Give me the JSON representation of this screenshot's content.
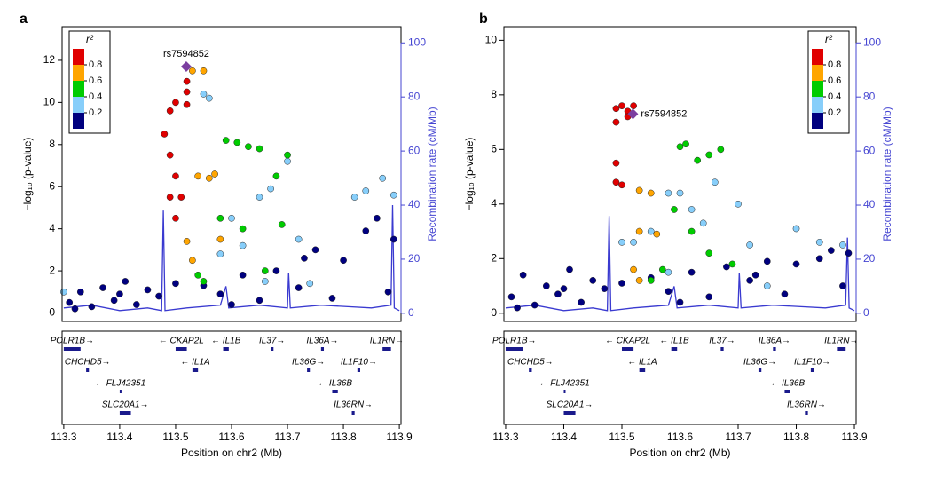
{
  "chart_data": [
    {
      "type": "scatter",
      "panel": "a",
      "xlabel": "Position on chr2 (Mb)",
      "ylabel": "−log₁₀ (p-value)",
      "y2label": "Recombination rate (cM/Mb)",
      "xlim": [
        113.297,
        113.903
      ],
      "xticks": [
        113.3,
        113.4,
        113.5,
        113.6,
        113.7,
        113.8,
        113.9
      ],
      "ylim": [
        -0.4,
        13.6
      ],
      "yticks": [
        0,
        2,
        4,
        6,
        8,
        10,
        12
      ],
      "y2lim": [
        -3,
        106
      ],
      "y2ticks": [
        0,
        20,
        40,
        60,
        80,
        100
      ],
      "y2color": "#4646d2",
      "legend": {
        "title": "r²",
        "position": "upper left",
        "colorlim": [
          0,
          1
        ],
        "colors": [
          "#00007f",
          "#87cefa",
          "#00cc00",
          "#ffa500",
          "#e00000"
        ],
        "ticks": [
          0.2,
          0.4,
          0.6,
          0.8
        ]
      },
      "series": [
        {
          "color": "#00007f",
          "x": [
            113.31,
            113.33,
            113.35,
            113.37,
            113.39,
            113.41,
            113.43,
            113.45,
            113.47,
            113.5,
            113.55,
            113.58,
            113.62,
            113.65,
            113.68,
            113.72,
            113.75,
            113.78,
            113.8,
            113.84,
            113.86,
            113.88,
            113.89,
            113.32,
            113.4,
            113.6,
            113.73
          ],
          "values": [
            0.5,
            1.0,
            0.3,
            1.2,
            0.6,
            1.5,
            0.4,
            1.1,
            0.8,
            1.4,
            1.3,
            0.9,
            1.8,
            0.6,
            2.0,
            1.2,
            3.0,
            0.7,
            2.5,
            3.9,
            4.5,
            1.0,
            3.5,
            0.2,
            0.9,
            0.4,
            2.6
          ]
        },
        {
          "color": "#87cefa",
          "x": [
            113.55,
            113.56,
            113.58,
            113.6,
            113.62,
            113.65,
            113.67,
            113.7,
            113.72,
            113.74,
            113.82,
            113.84,
            113.87,
            113.89,
            113.3,
            113.66
          ],
          "values": [
            10.4,
            10.2,
            2.8,
            4.5,
            3.2,
            5.5,
            5.9,
            7.2,
            3.5,
            1.4,
            5.5,
            5.8,
            6.4,
            5.6,
            1.0,
            1.5
          ]
        },
        {
          "color": "#00cc00",
          "x": [
            113.59,
            113.61,
            113.63,
            113.65,
            113.68,
            113.7,
            113.58,
            113.62,
            113.69,
            113.54,
            113.66,
            113.55
          ],
          "values": [
            8.2,
            8.1,
            7.9,
            7.8,
            6.5,
            7.5,
            4.5,
            4.0,
            4.2,
            1.8,
            2.0,
            1.5
          ]
        },
        {
          "color": "#ffa500",
          "x": [
            113.53,
            113.55,
            113.54,
            113.56,
            113.52,
            113.53,
            113.57,
            113.58
          ],
          "values": [
            11.5,
            11.5,
            6.5,
            6.4,
            3.4,
            2.5,
            6.6,
            3.5
          ]
        },
        {
          "color": "#e00000",
          "x": [
            113.49,
            113.5,
            113.52,
            113.52,
            113.48,
            113.49,
            113.5,
            113.49,
            113.51,
            113.5,
            113.52
          ],
          "values": [
            9.6,
            10.0,
            10.5,
            11.0,
            8.5,
            7.5,
            6.5,
            5.5,
            5.5,
            4.5,
            9.9
          ]
        }
      ],
      "lead": {
        "label": "rs7594852",
        "x": 113.519,
        "value": 11.7,
        "color": "#7b3fa0"
      },
      "recombination": {
        "axis": "y2",
        "color": "#3a3ad0",
        "x": [
          113.3,
          113.35,
          113.4,
          113.45,
          113.475,
          113.478,
          113.481,
          113.52,
          113.58,
          113.59,
          113.595,
          113.65,
          113.7,
          113.702,
          113.705,
          113.76,
          113.85,
          113.885,
          113.888,
          113.891,
          113.9
        ],
        "values": [
          2,
          3,
          1,
          2,
          1,
          38,
          1,
          2,
          3,
          10,
          2,
          3,
          2,
          15,
          2,
          3,
          2,
          3,
          40,
          2,
          1
        ]
      },
      "genes": [
        {
          "label": "POLR1B→",
          "start": 113.3,
          "end": 113.33,
          "row": 0
        },
        {
          "label": "← CKAP2L",
          "start": 113.5,
          "end": 113.52,
          "row": 0
        },
        {
          "label": "← IL1B",
          "start": 113.585,
          "end": 113.595,
          "row": 0
        },
        {
          "label": "IL37→",
          "start": 113.67,
          "end": 113.675,
          "row": 0
        },
        {
          "label": "IL36A→",
          "start": 113.76,
          "end": 113.765,
          "row": 0
        },
        {
          "label": "IL1RN→",
          "start": 113.87,
          "end": 113.885,
          "row": 0
        },
        {
          "label": "CHCHD5→",
          "start": 113.34,
          "end": 113.345,
          "row": 1
        },
        {
          "label": "← IL1A",
          "start": 113.53,
          "end": 113.54,
          "row": 1
        },
        {
          "label": "IL36G→",
          "start": 113.735,
          "end": 113.74,
          "row": 1
        },
        {
          "label": "IL1F10→",
          "start": 113.825,
          "end": 113.83,
          "row": 1
        },
        {
          "label": "← FLJ42351",
          "start": 113.4,
          "end": 113.402,
          "row": 2
        },
        {
          "label": "← IL36B",
          "start": 113.78,
          "end": 113.79,
          "row": 2
        },
        {
          "label": "SLC20A1→",
          "start": 113.4,
          "end": 113.42,
          "row": 3
        },
        {
          "label": "IL36RN→",
          "start": 113.815,
          "end": 113.82,
          "row": 3
        }
      ]
    },
    {
      "type": "scatter",
      "panel": "b",
      "xlabel": "Position on chr2 (Mb)",
      "ylabel": "−log₁₀ (p-value)",
      "y2label": "Recombination rate (cM/Mb)",
      "xlim": [
        113.297,
        113.903
      ],
      "xticks": [
        113.3,
        113.4,
        113.5,
        113.6,
        113.7,
        113.8,
        113.9
      ],
      "ylim": [
        -0.3,
        10.5
      ],
      "yticks": [
        0,
        2,
        4,
        6,
        8,
        10
      ],
      "y2lim": [
        -3,
        106
      ],
      "y2ticks": [
        0,
        20,
        40,
        60,
        80,
        100
      ],
      "y2color": "#4646d2",
      "legend": {
        "title": "r²",
        "position": "upper right",
        "colorlim": [
          0,
          1
        ],
        "colors": [
          "#00007f",
          "#87cefa",
          "#00cc00",
          "#ffa500",
          "#e00000"
        ],
        "ticks": [
          0.2,
          0.4,
          0.6,
          0.8
        ]
      },
      "series": [
        {
          "color": "#00007f",
          "x": [
            113.31,
            113.33,
            113.35,
            113.37,
            113.39,
            113.41,
            113.43,
            113.45,
            113.47,
            113.5,
            113.55,
            113.58,
            113.62,
            113.65,
            113.68,
            113.72,
            113.75,
            113.78,
            113.8,
            113.84,
            113.86,
            113.88,
            113.89,
            113.32,
            113.4,
            113.6,
            113.73
          ],
          "values": [
            0.6,
            1.4,
            0.3,
            1.0,
            0.7,
            1.6,
            0.4,
            1.2,
            0.9,
            1.1,
            1.3,
            0.8,
            1.5,
            0.6,
            1.7,
            1.2,
            1.9,
            0.7,
            1.8,
            2.0,
            2.3,
            1.0,
            2.2,
            0.2,
            0.9,
            0.4,
            1.4
          ]
        },
        {
          "color": "#87cefa",
          "x": [
            113.5,
            113.52,
            113.55,
            113.58,
            113.6,
            113.62,
            113.64,
            113.66,
            113.7,
            113.72,
            113.8,
            113.84,
            113.88,
            113.58,
            113.75
          ],
          "values": [
            2.6,
            2.6,
            3.0,
            4.4,
            4.4,
            3.8,
            3.3,
            4.8,
            4.0,
            2.5,
            3.1,
            2.6,
            2.5,
            1.5,
            1.0
          ]
        },
        {
          "color": "#00cc00",
          "x": [
            113.6,
            113.61,
            113.63,
            113.65,
            113.67,
            113.59,
            113.62,
            113.65,
            113.69,
            113.55,
            113.57
          ],
          "values": [
            6.1,
            6.2,
            5.6,
            5.8,
            6.0,
            3.8,
            3.0,
            2.2,
            1.8,
            1.2,
            1.6
          ]
        },
        {
          "color": "#ffa500",
          "x": [
            113.53,
            113.55,
            113.53,
            113.56,
            113.52,
            113.53
          ],
          "values": [
            4.5,
            4.4,
            3.0,
            2.9,
            1.6,
            1.2
          ]
        },
        {
          "color": "#e00000",
          "x": [
            113.49,
            113.5,
            113.51,
            113.52,
            113.49,
            113.49,
            113.49,
            113.5,
            113.51
          ],
          "values": [
            7.5,
            7.6,
            7.4,
            7.6,
            7.0,
            5.5,
            4.8,
            4.7,
            7.2
          ]
        }
      ],
      "lead": {
        "label": "rs7594852",
        "x": 113.519,
        "value": 7.3,
        "color": "#7b3fa0"
      },
      "recombination": {
        "axis": "y2",
        "color": "#3a3ad0",
        "x": [
          113.3,
          113.35,
          113.4,
          113.45,
          113.475,
          113.478,
          113.481,
          113.52,
          113.58,
          113.59,
          113.595,
          113.65,
          113.7,
          113.702,
          113.705,
          113.76,
          113.85,
          113.885,
          113.888,
          113.891,
          113.9
        ],
        "values": [
          2,
          3,
          1,
          2,
          1,
          36,
          1,
          2,
          3,
          10,
          2,
          3,
          2,
          15,
          2,
          3,
          2,
          3,
          28,
          2,
          1
        ]
      },
      "genes": [
        {
          "label": "POLR1B→",
          "start": 113.3,
          "end": 113.33,
          "row": 0
        },
        {
          "label": "← CKAP2L",
          "start": 113.5,
          "end": 113.52,
          "row": 0
        },
        {
          "label": "← IL1B",
          "start": 113.585,
          "end": 113.595,
          "row": 0
        },
        {
          "label": "IL37→",
          "start": 113.67,
          "end": 113.675,
          "row": 0
        },
        {
          "label": "IL36A→",
          "start": 113.76,
          "end": 113.765,
          "row": 0
        },
        {
          "label": "IL1RN→",
          "start": 113.87,
          "end": 113.885,
          "row": 0
        },
        {
          "label": "CHCHD5→",
          "start": 113.34,
          "end": 113.345,
          "row": 1
        },
        {
          "label": "← IL1A",
          "start": 113.53,
          "end": 113.54,
          "row": 1
        },
        {
          "label": "IL36G→",
          "start": 113.735,
          "end": 113.74,
          "row": 1
        },
        {
          "label": "IL1F10→",
          "start": 113.825,
          "end": 113.83,
          "row": 1
        },
        {
          "label": "← FLJ42351",
          "start": 113.4,
          "end": 113.402,
          "row": 2
        },
        {
          "label": "← IL36B",
          "start": 113.78,
          "end": 113.79,
          "row": 2
        },
        {
          "label": "SLC20A1→",
          "start": 113.4,
          "end": 113.42,
          "row": 3
        },
        {
          "label": "IL36RN→",
          "start": 113.815,
          "end": 113.82,
          "row": 3
        }
      ]
    }
  ]
}
